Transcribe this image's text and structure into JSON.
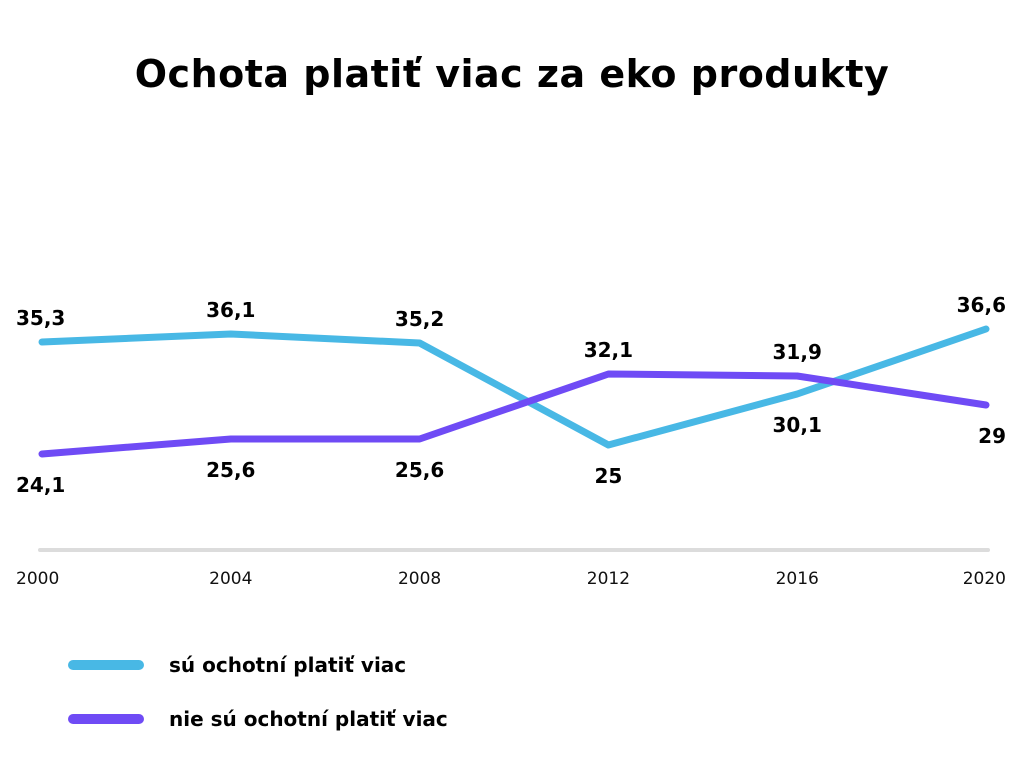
{
  "chart_data": {
    "type": "line",
    "title": "Ochota platiť viac za eko produkty",
    "x": [
      "2000",
      "2004",
      "2008",
      "2012",
      "2016",
      "2020"
    ],
    "series": [
      {
        "name": "sú ochotní platiť viac",
        "color": "#48b8e5",
        "values": [
          35.3,
          36.1,
          35.2,
          25,
          30.1,
          36.6
        ],
        "labels": [
          "35,3",
          "36,1",
          "35,2",
          "25",
          "30,1",
          "36,6"
        ]
      },
      {
        "name": "nie sú ochotní platiť viac",
        "color": "#6f4bf5",
        "values": [
          24.1,
          25.6,
          25.6,
          32.1,
          31.9,
          29
        ],
        "labels": [
          "24,1",
          "25,6",
          "25,6",
          "32,1",
          "31,9",
          "29"
        ]
      }
    ],
    "ylim": [
      0,
      50
    ],
    "grid": false,
    "legend_position": "bottom-left",
    "axis_color": "#dcdcdc"
  }
}
